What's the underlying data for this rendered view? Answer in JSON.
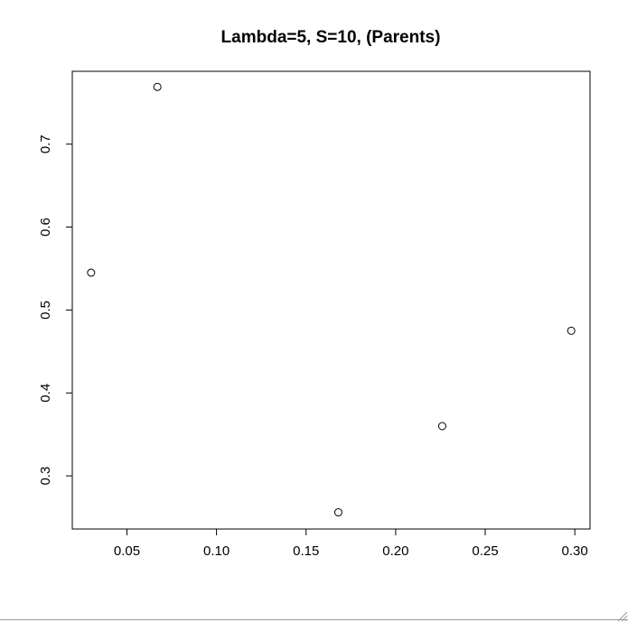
{
  "chart_data": {
    "type": "scatter",
    "title": "Lambda=5, S=10, (Parents)",
    "xlabel": "",
    "ylabel": "",
    "x_ticks": [
      0.05,
      0.1,
      0.15,
      0.2,
      0.25,
      0.3
    ],
    "x_tick_labels": [
      "0.05",
      "0.10",
      "0.15",
      "0.20",
      "0.25",
      "0.30"
    ],
    "y_ticks": [
      0.3,
      0.4,
      0.5,
      0.6,
      0.7
    ],
    "y_tick_labels": [
      "0.3",
      "0.4",
      "0.5",
      "0.6",
      "0.7"
    ],
    "xlim": [
      0.0195,
      0.3085
    ],
    "ylim": [
      0.2359,
      0.7878
    ],
    "points": [
      {
        "x": 0.03,
        "y": 0.545
      },
      {
        "x": 0.067,
        "y": 0.769
      },
      {
        "x": 0.168,
        "y": 0.256
      },
      {
        "x": 0.226,
        "y": 0.36
      },
      {
        "x": 0.298,
        "y": 0.475
      }
    ],
    "marker": "open-circle",
    "grid": false,
    "legend": false
  }
}
